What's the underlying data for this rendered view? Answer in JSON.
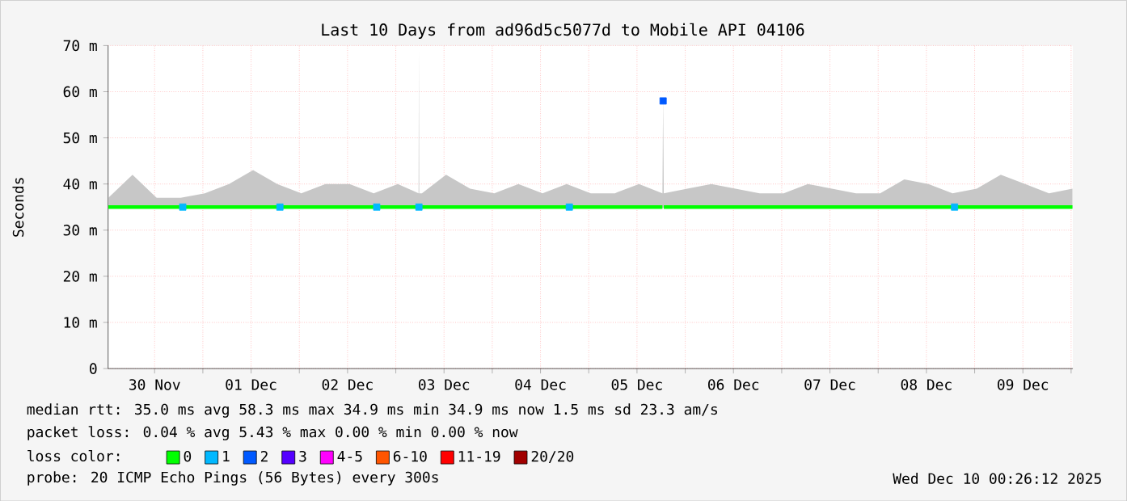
{
  "chart_data": {
    "type": "line",
    "title": "Last 10 Days from ad96d5c5077d to Mobile API 04106",
    "ylabel": "Seconds",
    "legend_title": "loss color:",
    "legend": "bottom",
    "grid": true,
    "xlim": [
      "2025-11-30T00:26",
      "2025-12-10T00:26"
    ],
    "xticks": [
      {
        "value": "2025-11-30T12:00",
        "label": "30 Nov"
      },
      {
        "value": "2025-12-01T00:00",
        "label": null
      },
      {
        "value": "2025-12-01T12:00",
        "label": "01 Dec"
      },
      {
        "value": "2025-12-02T00:00",
        "label": null
      },
      {
        "value": "2025-12-02T12:00",
        "label": "02 Dec"
      },
      {
        "value": "2025-12-03T00:00",
        "label": null
      },
      {
        "value": "2025-12-03T12:00",
        "label": "03 Dec"
      },
      {
        "value": "2025-12-04T00:00",
        "label": null
      },
      {
        "value": "2025-12-04T12:00",
        "label": "04 Dec"
      },
      {
        "value": "2025-12-05T00:00",
        "label": null
      },
      {
        "value": "2025-12-05T12:00",
        "label": "05 Dec"
      },
      {
        "value": "2025-12-06T00:00",
        "label": null
      },
      {
        "value": "2025-12-06T12:00",
        "label": "06 Dec"
      },
      {
        "value": "2025-12-07T00:00",
        "label": null
      },
      {
        "value": "2025-12-07T12:00",
        "label": "07 Dec"
      },
      {
        "value": "2025-12-08T00:00",
        "label": null
      },
      {
        "value": "2025-12-08T12:00",
        "label": "08 Dec"
      },
      {
        "value": "2025-12-09T00:00",
        "label": null
      },
      {
        "value": "2025-12-09T12:00",
        "label": "09 Dec"
      },
      {
        "value": "2025-12-10T00:00",
        "label": null
      }
    ],
    "ylim": [
      0,
      70
    ],
    "yticks": [
      0,
      {
        "value": 10,
        "label": "10 m"
      },
      {
        "value": 20,
        "label": "20 m"
      },
      {
        "value": 30,
        "label": "30 m"
      },
      {
        "value": 40,
        "label": "40 m"
      },
      {
        "value": 50,
        "label": "50 m"
      },
      {
        "value": 60,
        "label": "60 m"
      },
      {
        "value": 70,
        "label": "70 m"
      }
    ],
    "series": [
      {
        "name": "0",
        "color": "#00ff00",
        "marker": "none",
        "x": [
          "2025-11-30T00:30",
          "2025-11-30T06:30",
          "2025-11-30T12:30",
          "2025-11-30T18:30",
          "2025-12-01T00:30",
          "2025-12-01T06:30",
          "2025-12-01T12:30",
          "2025-12-01T18:30",
          "2025-12-02T00:30",
          "2025-12-02T06:30",
          "2025-12-02T12:30",
          "2025-12-02T18:30",
          "2025-12-03T00:30",
          "2025-12-03T05:40",
          "2025-12-03T05:45",
          "2025-12-03T05:50",
          "2025-12-03T06:30",
          "2025-12-03T12:30",
          "2025-12-03T18:30",
          "2025-12-04T00:30",
          "2025-12-04T06:30",
          "2025-12-04T12:30",
          "2025-12-04T18:30",
          "2025-12-05T00:30",
          "2025-12-05T06:30",
          "2025-12-05T12:30",
          "2025-12-05T18:20",
          "2025-12-05T18:30",
          "2025-12-05T18:40",
          "2025-12-06T00:30",
          "2025-12-06T06:30",
          "2025-12-06T12:30",
          "2025-12-06T18:30",
          "2025-12-07T00:30",
          "2025-12-07T06:30",
          "2025-12-07T12:30",
          "2025-12-07T18:30",
          "2025-12-08T00:30",
          "2025-12-08T06:30",
          "2025-12-08T12:30",
          "2025-12-08T18:30",
          "2025-12-09T00:30",
          "2025-12-09T06:30",
          "2025-12-09T12:30",
          "2025-12-09T18:30",
          "2025-12-10T00:20"
        ],
        "values": [
          35,
          35,
          35,
          35,
          35,
          35,
          35,
          35,
          35,
          35,
          35,
          35,
          35,
          35,
          35,
          35,
          35,
          35,
          35,
          35,
          35,
          35,
          35,
          35,
          35,
          35,
          35,
          null,
          35,
          35,
          35,
          35,
          35,
          35,
          35,
          35,
          35,
          35,
          35,
          35,
          35,
          35,
          35,
          35,
          35,
          35
        ],
        "lower": [
          34.8,
          34.8,
          34.8,
          34.8,
          34.8,
          34.8,
          34.8,
          34.8,
          34.8,
          34.8,
          34.8,
          34.8,
          34.8,
          34.8,
          34.8,
          34.8,
          34.8,
          34.8,
          34.8,
          34.8,
          34.8,
          34.8,
          34.8,
          34.8,
          34.8,
          34.8,
          34.8,
          34.8,
          34.8,
          34.8,
          34.8,
          34.8,
          34.8,
          34.8,
          34.8,
          34.8,
          34.8,
          34.8,
          34.8,
          34.8,
          34.8,
          34.8,
          34.8,
          34.8,
          34.8,
          34.8
        ],
        "upper": [
          37,
          42,
          37,
          37,
          38,
          40,
          43,
          40,
          38,
          40,
          40,
          38,
          40,
          38,
          70,
          38,
          38,
          42,
          39,
          38,
          40,
          38,
          40,
          38,
          38,
          40,
          38,
          59,
          38,
          39,
          40,
          39,
          38,
          38,
          40,
          39,
          38,
          38,
          41,
          40,
          38,
          39,
          42,
          40,
          38,
          39
        ]
      },
      {
        "name": "1",
        "color": "#00b8ff",
        "type": "scatter",
        "marker": "square",
        "x": [
          "2025-11-30T19:00",
          "2025-12-01T19:10",
          "2025-12-02T19:15",
          "2025-12-03T05:45",
          "2025-12-04T19:10",
          "2025-12-08T19:00"
        ],
        "values": [
          35,
          35,
          35,
          35,
          35,
          35
        ]
      },
      {
        "name": "2",
        "color": "#0059ff",
        "type": "scatter",
        "marker": "square",
        "x": [
          "2025-12-05T18:30"
        ],
        "values": [
          58
        ]
      },
      {
        "name": "3",
        "color": "#5500ff",
        "type": "scatter",
        "marker": "square"
      },
      {
        "name": "4-5",
        "color": "#ff00fe",
        "type": "scatter",
        "marker": "square"
      },
      {
        "name": "6-10",
        "color": "#ff5500",
        "type": "scatter",
        "marker": "square"
      },
      {
        "name": "11-19",
        "color": "#ff0000",
        "type": "scatter",
        "marker": "square"
      },
      {
        "name": "20/20",
        "color": "#a10000",
        "type": "scatter",
        "marker": "square"
      }
    ],
    "annotations": [
      "median rtt:  35.0 ms avg  58.3 ms max  34.9 ms min  34.9 ms now  1.5 ms sd  23.3   am/s",
      "packet loss: 0.04 % avg  5.43 % max  0.00 % min  0.00 % now",
      "probe:        20 ICMP Echo Pings (56 Bytes) every 300s",
      "Wed Dec 10 00:26:12 2025"
    ]
  }
}
